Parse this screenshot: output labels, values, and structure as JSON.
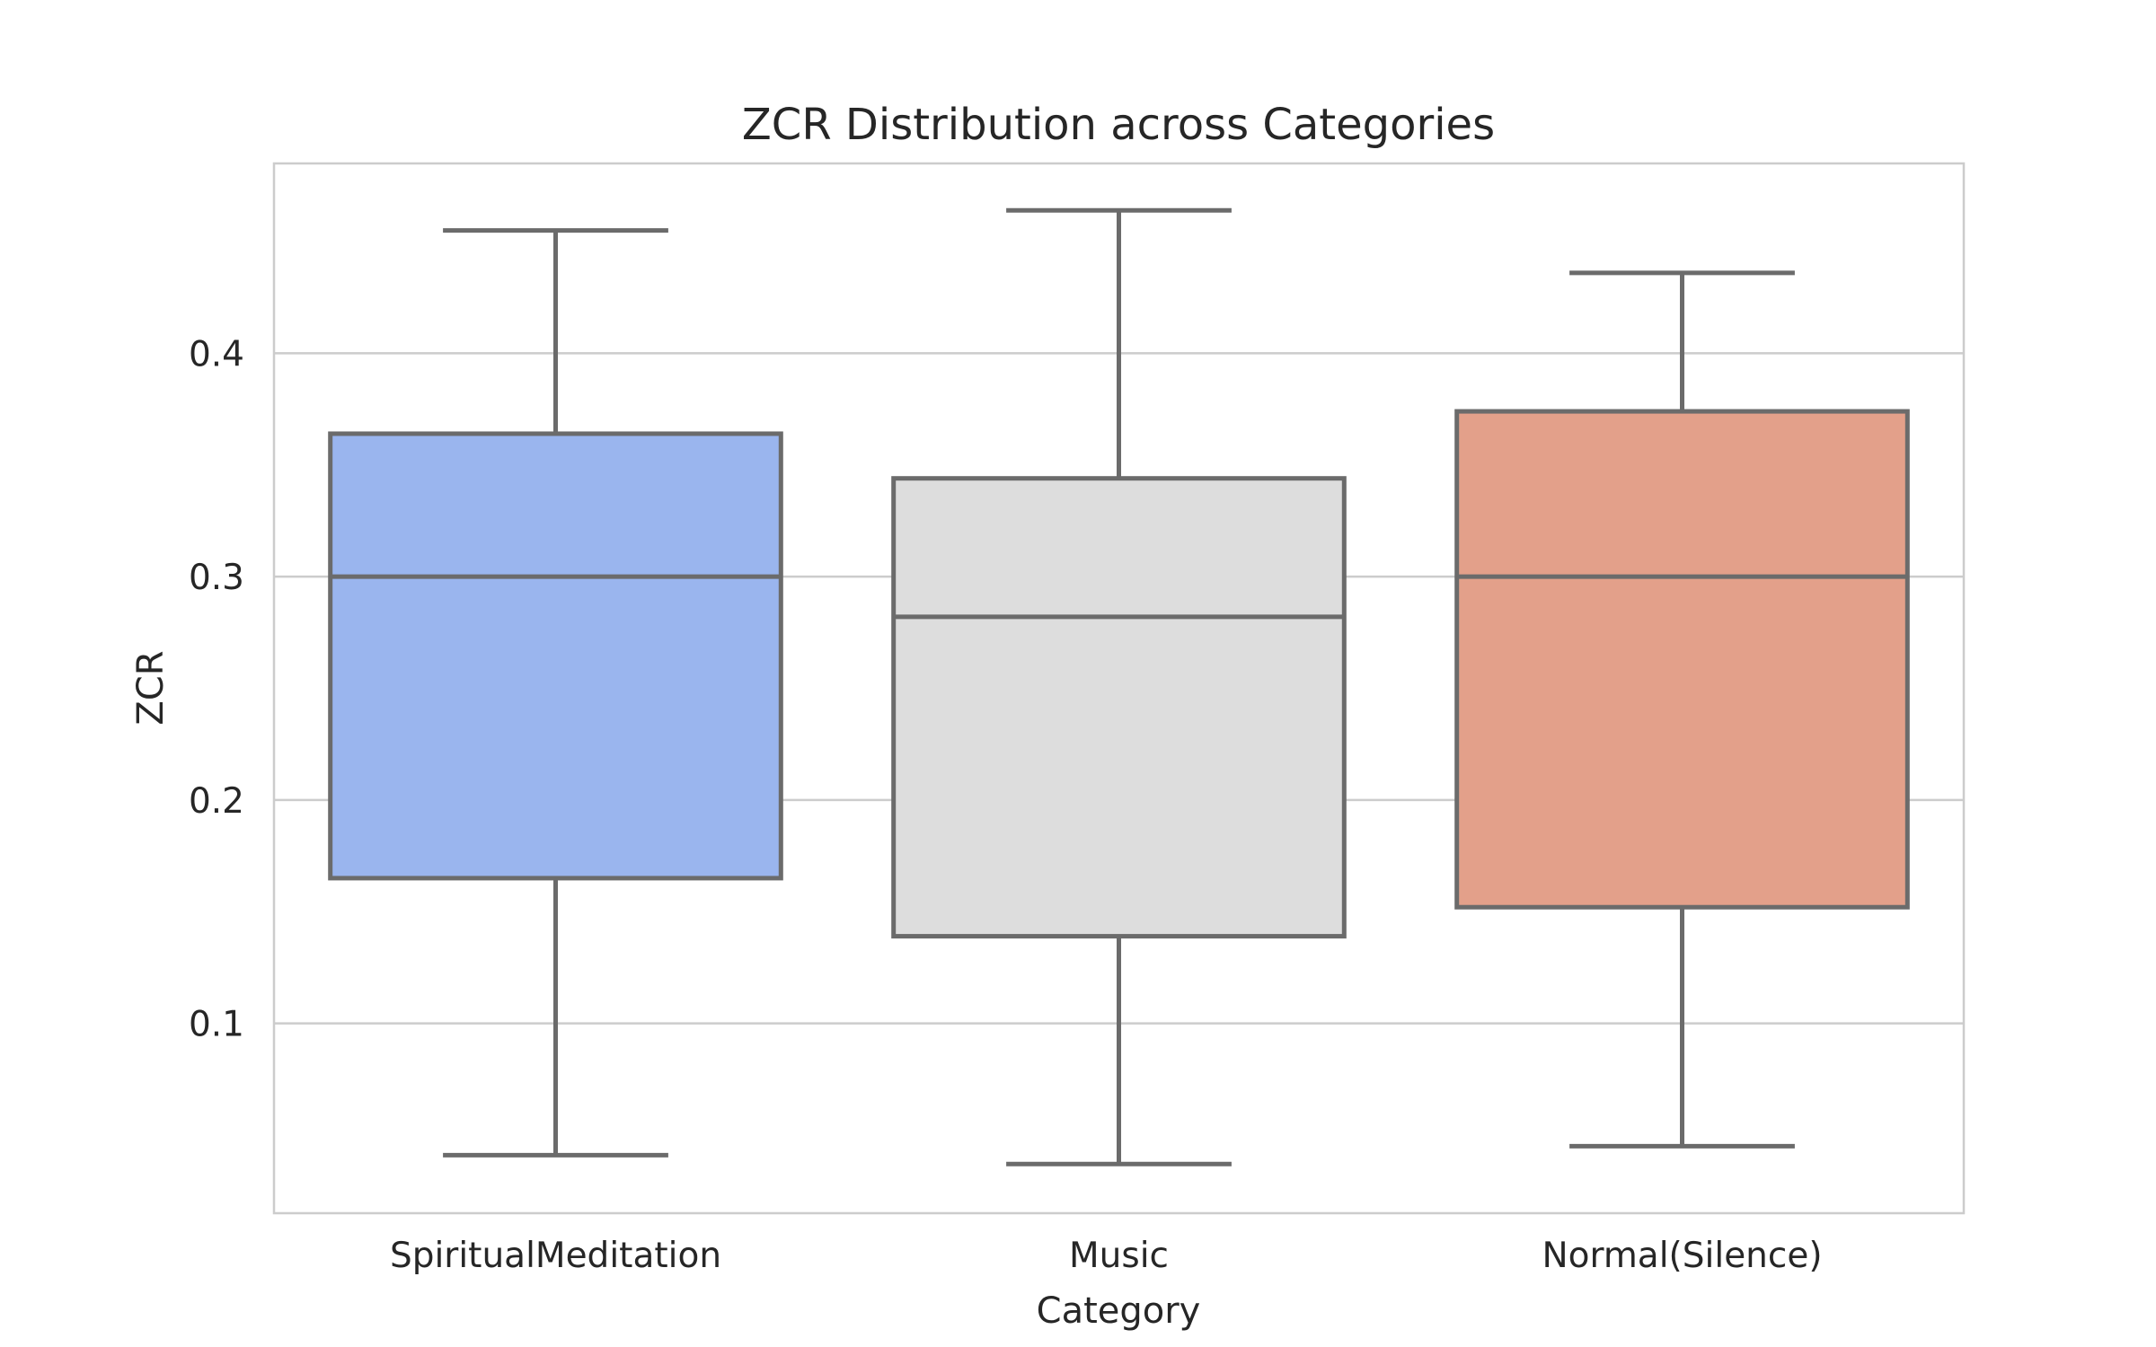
{
  "chart_data": {
    "type": "box",
    "title": "ZCR Distribution across Categories",
    "xlabel": "Category",
    "ylabel": "ZCR",
    "ylim": [
      0.015,
      0.485
    ],
    "yticks": [
      0.1,
      0.2,
      0.3,
      0.4
    ],
    "ytick_labels": [
      "0.1",
      "0.2",
      "0.3",
      "0.4"
    ],
    "grid": "horizontal",
    "categories": [
      "SpiritualMeditation",
      "Music",
      "Normal(Silence)"
    ],
    "boxes": [
      {
        "category": "SpiritualMeditation",
        "whisker_low": 0.041,
        "q1": 0.165,
        "median": 0.3,
        "q3": 0.364,
        "whisker_high": 0.455,
        "color": "#9ab5ee"
      },
      {
        "category": "Music",
        "whisker_low": 0.037,
        "q1": 0.139,
        "median": 0.282,
        "q3": 0.344,
        "whisker_high": 0.464,
        "color": "#dddddd"
      },
      {
        "category": "Normal(Silence)",
        "whisker_low": 0.045,
        "q1": 0.152,
        "median": 0.3,
        "q3": 0.374,
        "whisker_high": 0.436,
        "color": "#e3a08a"
      }
    ],
    "line_color": "#6b6b6b",
    "grid_color": "#cccccc",
    "frame_color": "#cccccc"
  }
}
